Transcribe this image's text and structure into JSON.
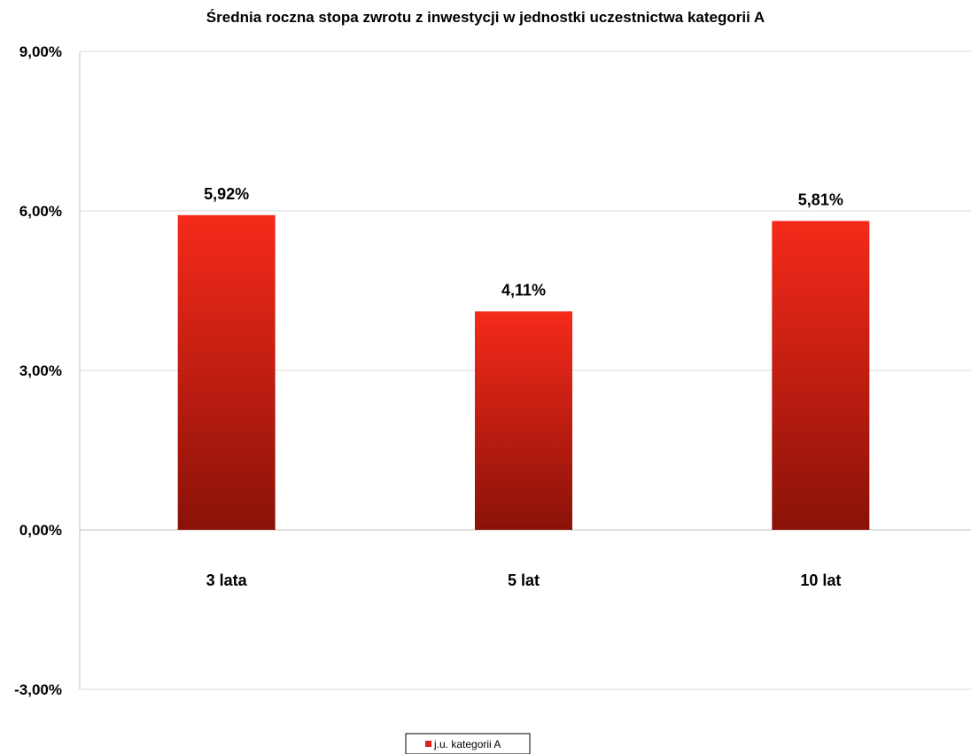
{
  "chart_data": {
    "type": "bar",
    "title": "Średnia roczna stopa zwrotu z inwestycji  w jednostki uczestnictwa kategorii A",
    "categories": [
      "3 lata",
      "5 lat",
      "10 lat"
    ],
    "values": [
      5.92,
      4.11,
      5.81
    ],
    "data_labels": [
      "5,92%",
      "4,11%",
      "5,81%"
    ],
    "ylim": [
      -3,
      9
    ],
    "yticks": [
      {
        "value": 9,
        "label": "9,00%"
      },
      {
        "value": 6,
        "label": "6,00%"
      },
      {
        "value": 3,
        "label": "3,00%"
      },
      {
        "value": 0,
        "label": "0,00%"
      },
      {
        "value": -3,
        "label": "-3,00%"
      }
    ],
    "series": [
      {
        "name": "j.u. kategorii A",
        "values": [
          5.92,
          4.11,
          5.81
        ]
      }
    ],
    "colors": {
      "bar_top": "#f52a1a",
      "bar_bottom": "#8a1208",
      "gridline": "#d9d9d9",
      "axis": "#bfbfbf"
    },
    "grid": true,
    "legend_position": "bottom"
  }
}
